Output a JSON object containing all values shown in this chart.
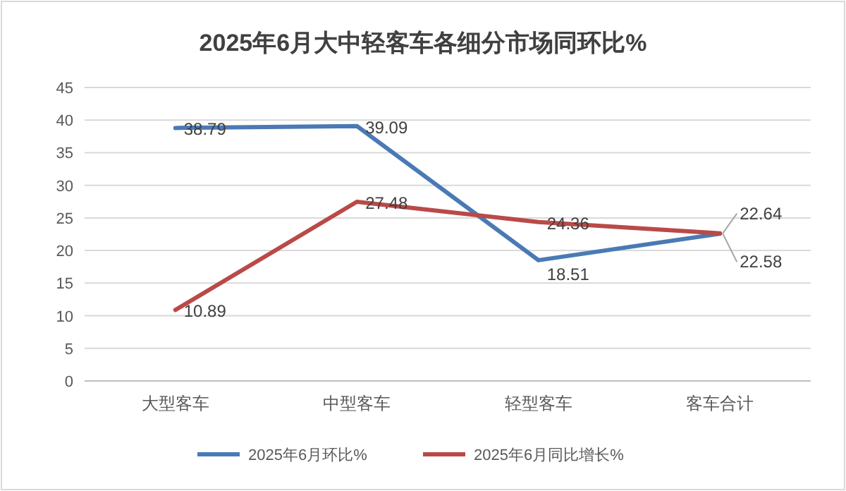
{
  "chart_data": {
    "type": "line",
    "title": "2025年6月大中轻客车各细分市场同环比%",
    "categories": [
      "大型客车",
      "中型客车",
      "轻型客车",
      "客车合计"
    ],
    "series": [
      {
        "name": "2025年6月环比%",
        "color": "#4a7ab5",
        "values": [
          38.79,
          39.09,
          18.51,
          22.58
        ]
      },
      {
        "name": "2025年6月同比增长%",
        "color": "#b94a48",
        "values": [
          10.89,
          27.48,
          24.36,
          22.64
        ]
      }
    ],
    "ylim": [
      0,
      45
    ],
    "yticks": [
      0,
      5,
      10,
      15,
      20,
      25,
      30,
      35,
      40,
      45
    ],
    "grid": "y",
    "legend": "bottom",
    "data_labels": true,
    "marker": "none",
    "line_style": "solid"
  }
}
